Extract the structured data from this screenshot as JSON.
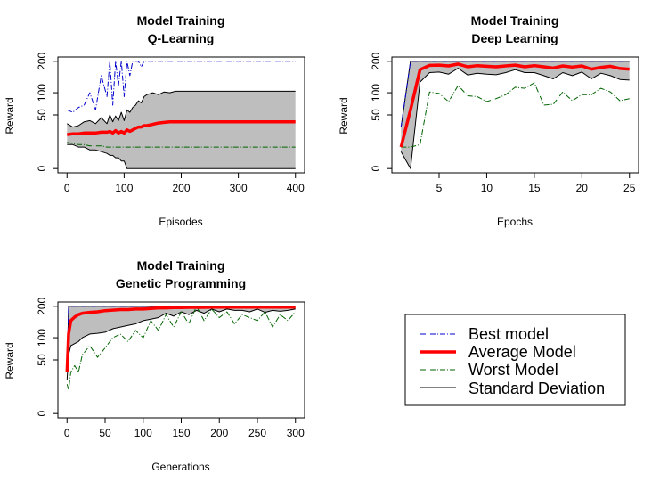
{
  "chart_data": [
    {
      "id": "qlearning",
      "type": "line",
      "title": "Model Training",
      "subtitle": "Q-Learning",
      "xlabel": "Episodes",
      "ylabel": "Reward",
      "xlim": [
        0,
        400
      ],
      "ylim": [
        0,
        200
      ],
      "xticks": [
        0,
        100,
        200,
        300,
        400
      ],
      "yticks": [
        0,
        50,
        100,
        200
      ],
      "y_scale": "sqrt",
      "shaded_band": true,
      "x": [
        0,
        10,
        20,
        30,
        40,
        50,
        60,
        70,
        75,
        80,
        85,
        90,
        95,
        100,
        105,
        110,
        115,
        120,
        125,
        130,
        135,
        140,
        150,
        160,
        170,
        180,
        190,
        200,
        220,
        250,
        300,
        350,
        400
      ],
      "series": [
        {
          "name": "Best model",
          "role": "best",
          "values": [
            60,
            55,
            65,
            70,
            100,
            60,
            150,
            90,
            200,
            70,
            200,
            120,
            200,
            90,
            200,
            150,
            200,
            200,
            200,
            180,
            200,
            200,
            200,
            200,
            200,
            200,
            200,
            200,
            200,
            200,
            200,
            200,
            200
          ]
        },
        {
          "name": "Average Model",
          "role": "average",
          "values": [
            20,
            21,
            21,
            22,
            22,
            22,
            23,
            23,
            24,
            22,
            25,
            22,
            24,
            22,
            26,
            24,
            26,
            28,
            30,
            30,
            32,
            32,
            34,
            36,
            37,
            38,
            38,
            38,
            38,
            38,
            38,
            38,
            38
          ]
        },
        {
          "name": "Worst Model",
          "role": "worst",
          "values": [
            12,
            11,
            10,
            10,
            9,
            9,
            9,
            8,
            8,
            8,
            8,
            8,
            8,
            8,
            8,
            8,
            8,
            8,
            8,
            8,
            8,
            8,
            8,
            8,
            8,
            8,
            8,
            8,
            8,
            8,
            8,
            8,
            8
          ]
        },
        {
          "name": "Standard Deviation",
          "role": "sd_upper",
          "values": [
            35,
            30,
            32,
            38,
            40,
            35,
            45,
            35,
            50,
            38,
            48,
            40,
            55,
            40,
            60,
            55,
            65,
            70,
            80,
            75,
            90,
            95,
            100,
            95,
            102,
            100,
            104,
            104,
            104,
            104,
            104,
            104,
            104
          ]
        },
        {
          "name": "Standard Deviation",
          "role": "sd_lower",
          "values": [
            10,
            10,
            8,
            8,
            6,
            6,
            5,
            4,
            3,
            3,
            2,
            2,
            1,
            1,
            0,
            0,
            0,
            0,
            0,
            0,
            0,
            0,
            0,
            0,
            0,
            0,
            0,
            0,
            0,
            0,
            0,
            0,
            0
          ]
        }
      ]
    },
    {
      "id": "deeplearning",
      "type": "line",
      "title": "Model Training",
      "subtitle": "Deep Learning",
      "xlabel": "Epochs",
      "ylabel": "Reward",
      "xlim": [
        1,
        25
      ],
      "ylim": [
        0,
        200
      ],
      "xticks": [
        5,
        10,
        15,
        20,
        25
      ],
      "yticks": [
        0,
        50,
        100,
        200
      ],
      "y_scale": "sqrt",
      "shaded_band": true,
      "x": [
        1,
        2,
        3,
        4,
        5,
        6,
        7,
        8,
        9,
        10,
        11,
        12,
        13,
        14,
        15,
        16,
        17,
        18,
        19,
        20,
        21,
        22,
        23,
        24,
        25
      ],
      "series": [
        {
          "name": "Best model",
          "role": "best",
          "values": [
            30,
            200,
            200,
            200,
            200,
            200,
            200,
            200,
            200,
            200,
            200,
            200,
            200,
            200,
            200,
            200,
            200,
            200,
            200,
            200,
            200,
            200,
            200,
            200,
            200
          ]
        },
        {
          "name": "Average Model",
          "role": "average",
          "values": [
            8,
            60,
            170,
            185,
            186,
            183,
            190,
            180,
            184,
            182,
            180,
            183,
            186,
            180,
            184,
            180,
            176,
            183,
            179,
            183,
            172,
            178,
            182,
            174,
            172
          ]
        },
        {
          "name": "Worst Model",
          "role": "worst",
          "values": [
            8,
            8,
            10,
            102,
            98,
            78,
            120,
            92,
            90,
            78,
            85,
            95,
            115,
            112,
            128,
            70,
            72,
            102,
            80,
            95,
            95,
            112,
            102,
            80,
            85
          ]
        },
        {
          "name": "Standard Deviation",
          "role": "sd_upper",
          "values": [
            30,
            200,
            200,
            200,
            200,
            200,
            200,
            200,
            200,
            200,
            200,
            200,
            200,
            200,
            200,
            200,
            200,
            200,
            200,
            200,
            200,
            200,
            200,
            200,
            200
          ]
        },
        {
          "name": "Standard Deviation",
          "role": "sd_lower",
          "values": [
            5,
            0,
            130,
            160,
            162,
            155,
            175,
            152,
            158,
            155,
            153,
            160,
            170,
            160,
            160,
            150,
            140,
            160,
            150,
            162,
            140,
            158,
            150,
            138,
            136
          ]
        }
      ]
    },
    {
      "id": "genetic",
      "type": "line",
      "title": "Model Training",
      "subtitle": "Genetic Programming",
      "xlabel": "Generations",
      "ylabel": "Reward",
      "xlim": [
        0,
        300
      ],
      "ylim": [
        0,
        200
      ],
      "xticks": [
        0,
        50,
        100,
        150,
        200,
        250,
        300
      ],
      "yticks": [
        0,
        50,
        100,
        200
      ],
      "y_scale": "sqrt",
      "shaded_band": true,
      "x": [
        0,
        2,
        5,
        10,
        15,
        20,
        30,
        40,
        50,
        60,
        70,
        80,
        90,
        100,
        110,
        120,
        130,
        140,
        150,
        160,
        170,
        180,
        190,
        200,
        210,
        220,
        230,
        240,
        250,
        260,
        270,
        280,
        290,
        300
      ],
      "series": [
        {
          "name": "Best model",
          "role": "best",
          "values": [
            30,
            200,
            200,
            200,
            200,
            200,
            200,
            200,
            200,
            200,
            200,
            200,
            200,
            200,
            200,
            200,
            200,
            200,
            200,
            200,
            200,
            200,
            200,
            200,
            200,
            200,
            200,
            200,
            200,
            200,
            200,
            200,
            200,
            200
          ]
        },
        {
          "name": "Average Model",
          "role": "average",
          "values": [
            30,
            110,
            150,
            162,
            170,
            175,
            178,
            180,
            184,
            186,
            188,
            188,
            190,
            190,
            192,
            194,
            194,
            195,
            195,
            196,
            196,
            196,
            197,
            197,
            197,
            197,
            197,
            197,
            197,
            197,
            197,
            197,
            197,
            197
          ]
        },
        {
          "name": "Worst Model",
          "role": "worst",
          "values": [
            15,
            10,
            30,
            40,
            30,
            60,
            80,
            55,
            75,
            100,
            110,
            90,
            120,
            100,
            150,
            120,
            170,
            130,
            180,
            140,
            200,
            150,
            190,
            160,
            180,
            140,
            170,
            160,
            150,
            180,
            130,
            170,
            150,
            180
          ]
        },
        {
          "name": "Standard Deviation",
          "role": "sd_upper",
          "values": [
            30,
            200,
            200,
            200,
            200,
            200,
            200,
            200,
            200,
            200,
            200,
            200,
            200,
            200,
            200,
            200,
            200,
            200,
            200,
            200,
            200,
            200,
            200,
            200,
            200,
            200,
            200,
            200,
            200,
            200,
            200,
            200,
            200,
            200
          ]
        },
        {
          "name": "Standard Deviation",
          "role": "sd_lower",
          "values": [
            20,
            60,
            80,
            85,
            90,
            100,
            110,
            112,
            115,
            125,
            130,
            135,
            140,
            150,
            155,
            160,
            175,
            165,
            180,
            170,
            185,
            175,
            190,
            180,
            190,
            185,
            185,
            180,
            190,
            178,
            185,
            182,
            185,
            190
          ]
        }
      ]
    }
  ],
  "legend": {
    "placement": "bottom-right",
    "items": [
      {
        "label": "Best model",
        "color": "#0000cc",
        "style": "dashdot"
      },
      {
        "label": "Average Model",
        "color": "#ff0000",
        "style": "solid-thick"
      },
      {
        "label": "Worst Model",
        "color": "#006400",
        "style": "dashdot"
      },
      {
        "label": "Standard Deviation",
        "color": "#000000",
        "style": "solid"
      }
    ]
  },
  "colors": {
    "best": "#0000cc",
    "average": "#ff0000",
    "worst": "#006400",
    "sd": "#000000",
    "band": "#bebebe"
  }
}
